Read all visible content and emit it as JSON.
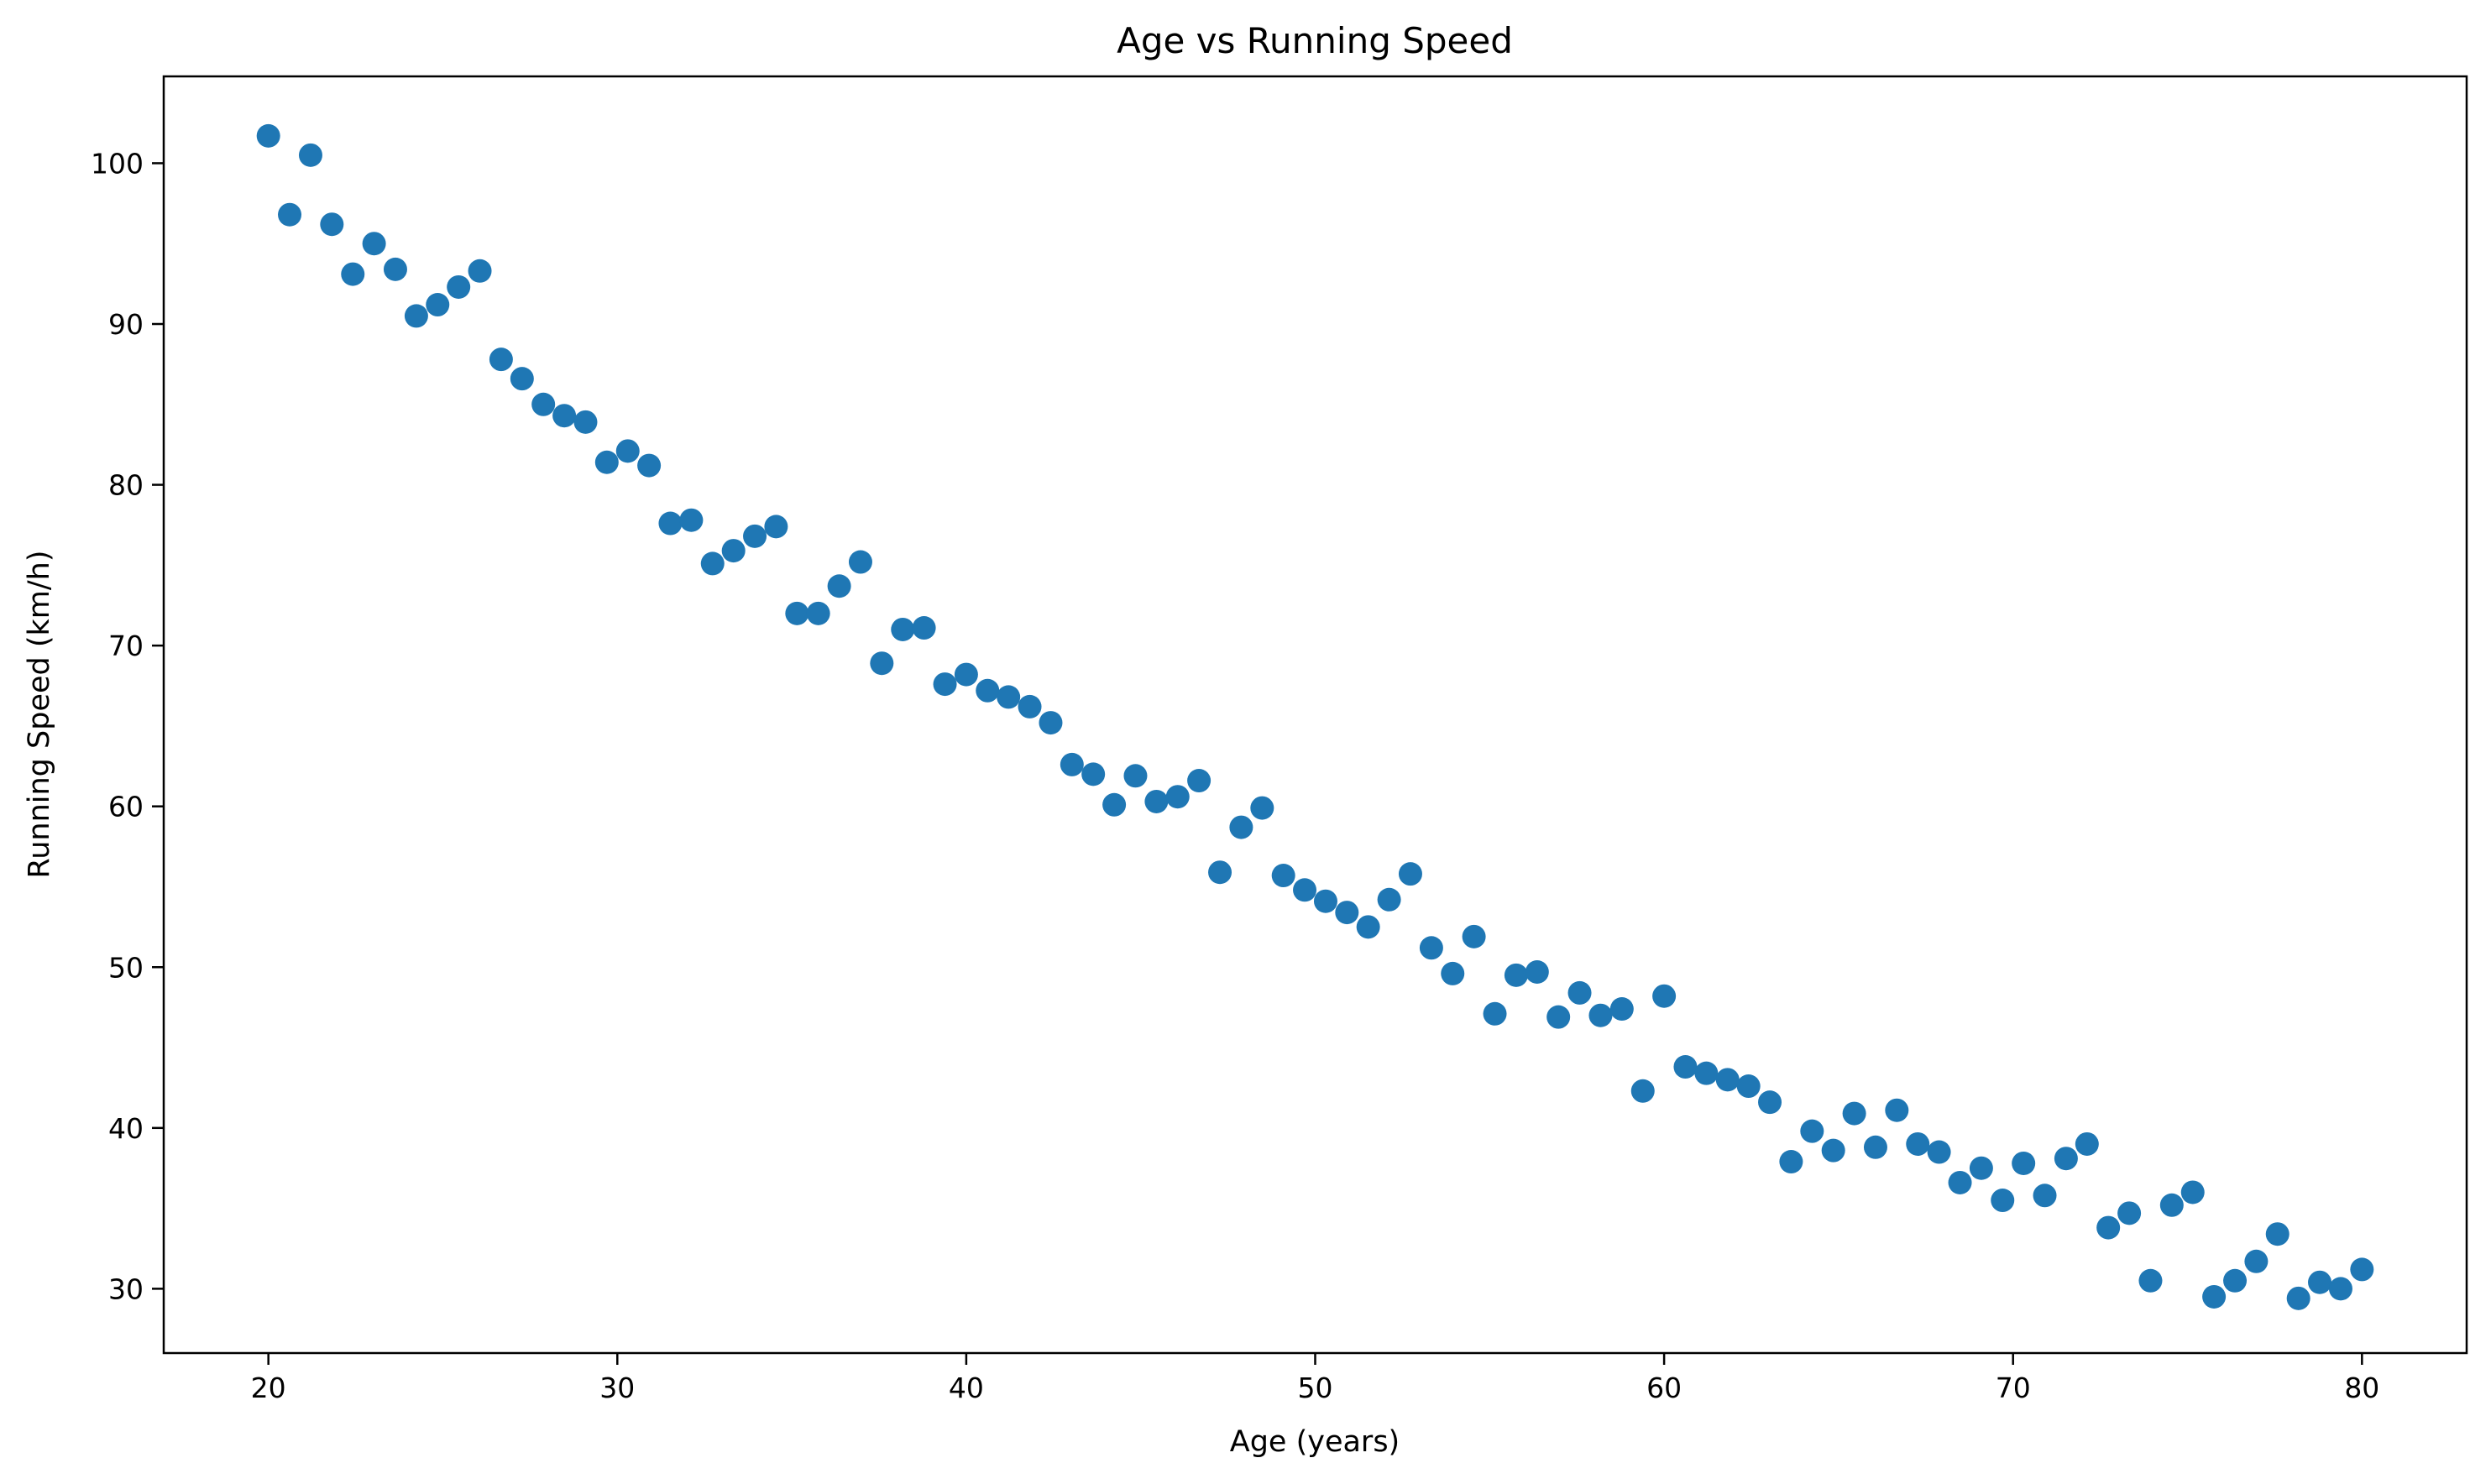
{
  "chart_data": {
    "type": "scatter",
    "title": "Age vs Running Speed",
    "xlabel": "Age (years)",
    "ylabel": "Running Speed (km/h)",
    "xlim": [
      17,
      83
    ],
    "ylim": [
      26,
      105.4
    ],
    "xticks": [
      20,
      30,
      40,
      50,
      60,
      70,
      80
    ],
    "yticks": [
      30,
      40,
      50,
      60,
      70,
      80,
      90,
      100
    ],
    "grid": false,
    "legend": "none",
    "marker_color": "#1f77b4",
    "series": [
      {
        "x": [
          20.0,
          20.61,
          21.21,
          21.82,
          22.42,
          23.03,
          23.64,
          24.24,
          24.85,
          25.45,
          26.06,
          26.67,
          27.27,
          27.88,
          28.48,
          29.09,
          29.7,
          30.3,
          30.91,
          31.52,
          32.12,
          32.73,
          33.33,
          33.94,
          34.55,
          35.15,
          35.76,
          36.36,
          36.97,
          37.58,
          38.18,
          38.79,
          39.39,
          40.0,
          40.61,
          41.21,
          41.82,
          42.42,
          43.03,
          43.64,
          44.24,
          44.85,
          45.45,
          46.06,
          46.67,
          47.27,
          47.88,
          48.48,
          49.09,
          49.7,
          50.3,
          50.91,
          51.52,
          52.12,
          52.73,
          53.33,
          53.94,
          54.55,
          55.15,
          55.76,
          56.36,
          56.97,
          57.58,
          58.18,
          58.79,
          59.39,
          60.0,
          60.61,
          61.21,
          61.82,
          62.42,
          63.03,
          63.64,
          64.24,
          64.85,
          65.45,
          66.06,
          66.67,
          67.27,
          67.88,
          68.48,
          69.09,
          69.7,
          70.3,
          70.91,
          71.52,
          72.12,
          72.73,
          73.33,
          73.94,
          74.55,
          75.15,
          75.76,
          76.36,
          76.97,
          77.58,
          78.18,
          78.79,
          79.39,
          80.0
        ],
        "y": [
          101.7,
          96.8,
          100.5,
          96.2,
          93.1,
          95.0,
          93.4,
          90.5,
          91.2,
          92.3,
          93.3,
          87.8,
          86.6,
          85.0,
          84.3,
          83.9,
          81.4,
          82.1,
          81.2,
          77.6,
          77.8,
          75.1,
          75.9,
          76.8,
          77.4,
          72.0,
          72.0,
          73.7,
          75.2,
          68.9,
          71.0,
          71.1,
          67.6,
          68.2,
          67.2,
          66.8,
          66.2,
          65.2,
          62.6,
          62.0,
          60.1,
          61.9,
          60.3,
          60.6,
          61.6,
          55.9,
          58.7,
          59.9,
          55.7,
          54.8,
          54.1,
          53.4,
          52.5,
          54.2,
          55.8,
          51.2,
          49.6,
          51.9,
          47.1,
          49.5,
          49.7,
          46.9,
          48.4,
          47.0,
          47.4,
          42.3,
          48.2,
          43.8,
          43.4,
          43.0,
          42.6,
          41.6,
          37.9,
          39.8,
          38.6,
          40.9,
          38.8,
          41.1,
          39.0,
          38.5,
          36.6,
          37.5,
          35.5,
          37.8,
          35.8,
          38.1,
          39.0,
          33.8,
          34.7,
          30.5,
          35.2,
          36.0,
          29.5,
          30.5,
          31.7,
          33.4,
          29.4,
          30.4,
          30.0,
          31.2
        ]
      }
    ]
  }
}
